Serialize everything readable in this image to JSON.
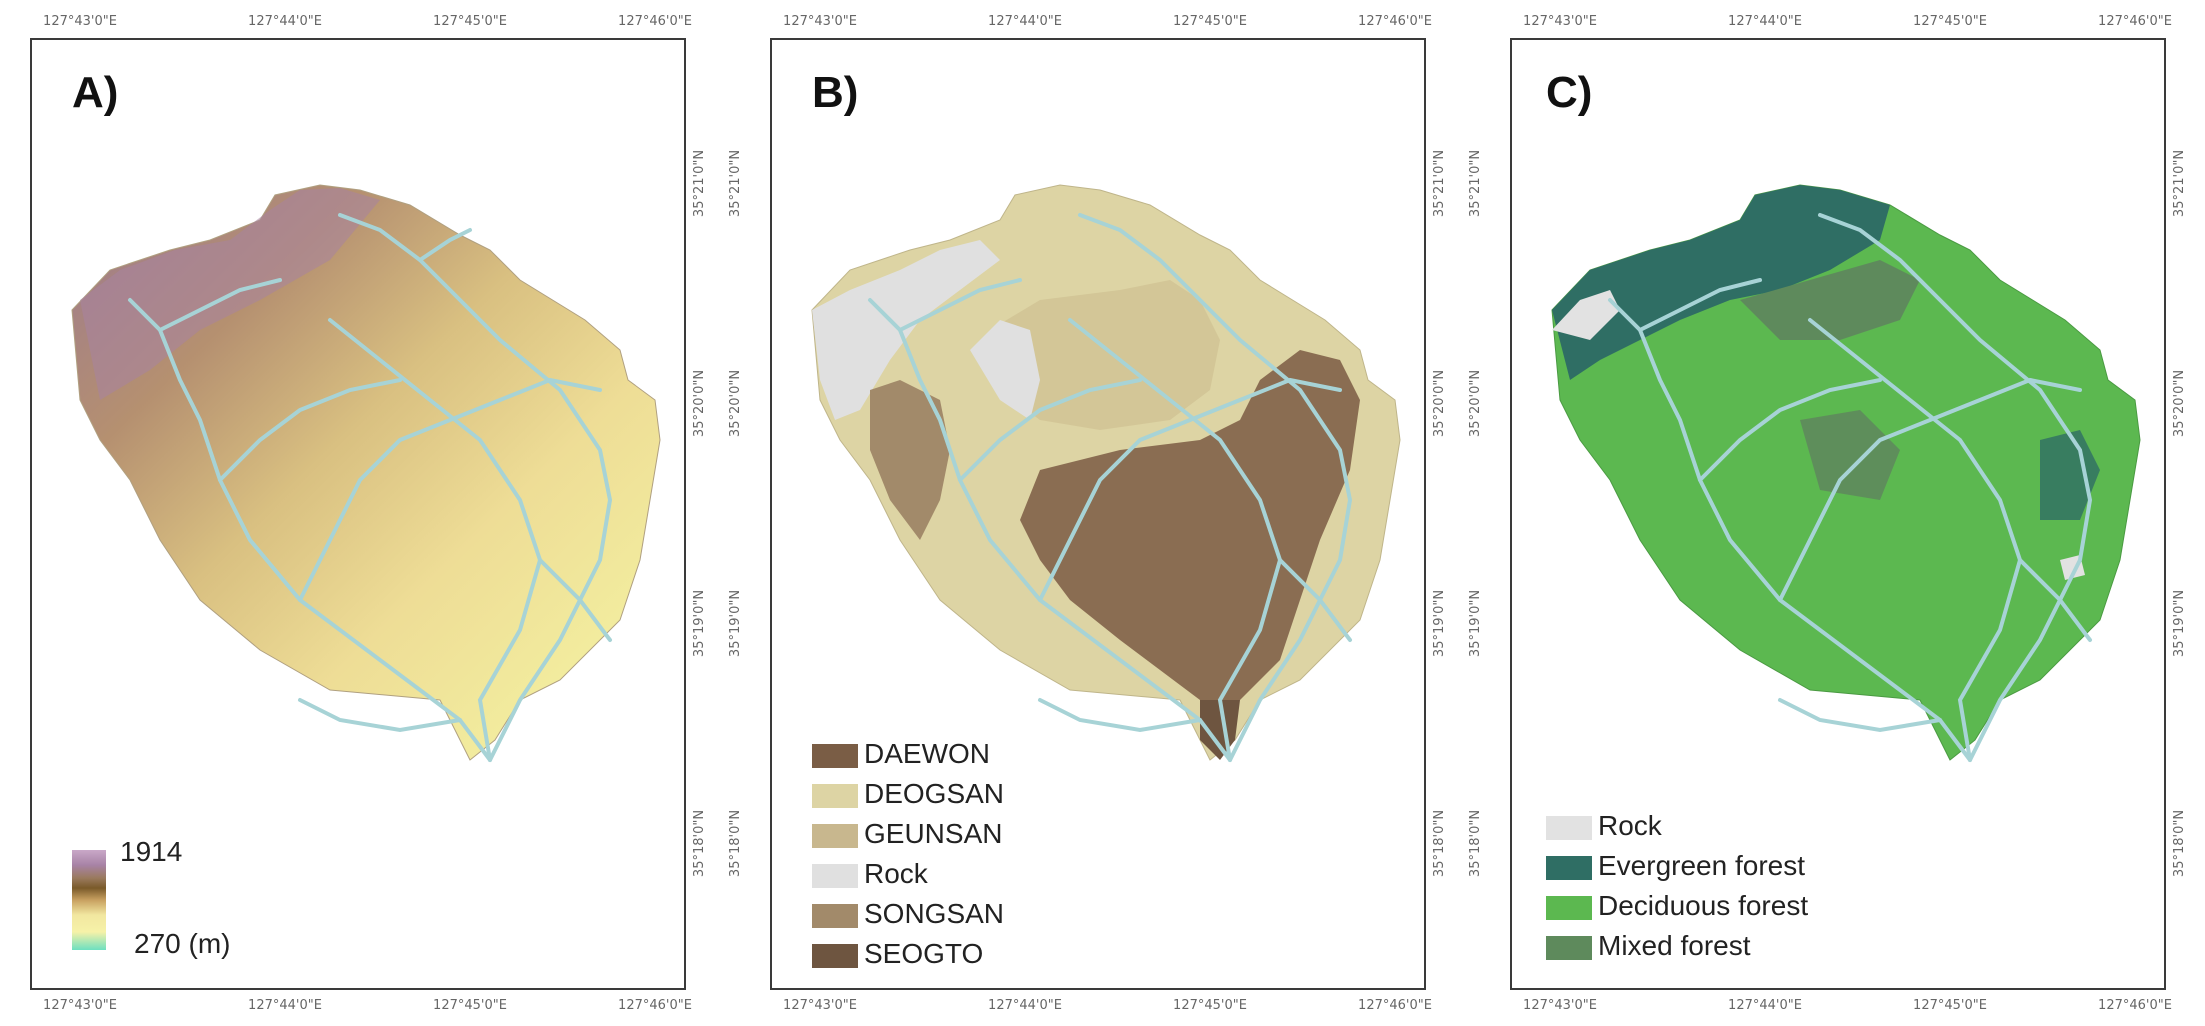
{
  "coords": {
    "lon_ticks": [
      "127°43'0\"E",
      "127°44'0\"E",
      "127°45'0\"E",
      "127°46'0\"E"
    ],
    "lat_ticks": [
      "35°21'0\"N",
      "35°20'0\"N",
      "35°19'0\"N",
      "35°18'0\"N"
    ]
  },
  "panels": [
    {
      "label": "A)",
      "legend": {
        "max": "1914",
        "min": "270 (m)"
      }
    },
    {
      "label": "B)",
      "legend": [
        {
          "name": "DAEWON",
          "color": "#7a5d45"
        },
        {
          "name": "DEOGSAN",
          "color": "#ddd4a4"
        },
        {
          "name": "GEUNSAN",
          "color": "#c8b78e"
        },
        {
          "name": "Rock",
          "color": "#e0e0e0"
        },
        {
          "name": "SONGSAN",
          "color": "#a28a6a"
        },
        {
          "name": "SEOGTO",
          "color": "#6e5540"
        }
      ]
    },
    {
      "label": "C)",
      "legend": [
        {
          "name": "Rock",
          "color": "#e2e2e2"
        },
        {
          "name": "Evergreen forest",
          "color": "#2f6e64"
        },
        {
          "name": "Deciduous forest",
          "color": "#5cb850"
        },
        {
          "name": "Mixed forest",
          "color": "#5e8a5c"
        }
      ]
    }
  ],
  "colors": {
    "stream": "#a7d3d6",
    "frame": "#3a3a3a"
  }
}
